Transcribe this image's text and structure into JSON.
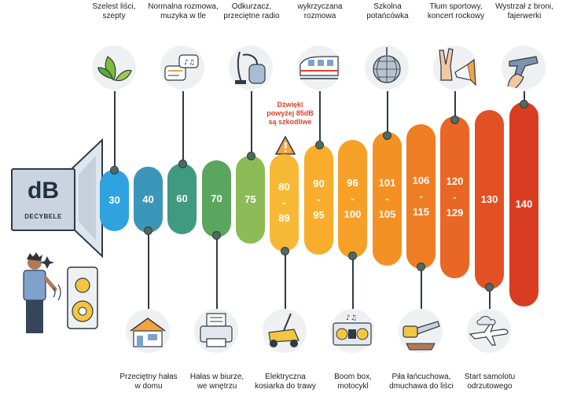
{
  "speaker": {
    "unit": "dB",
    "unit_label": "DECYBELE"
  },
  "warning": "Dźwięki\npowyżej 85dB\nsą szkodliwe",
  "top_labels": [
    "Szelest liści,\nszepty",
    "Normalna rozmowa,\nmuzyka w tle",
    "Odkurzacz,\nprzeciętne radio",
    "wykrzyczana\nrozmowa",
    "Szkolna\npotańcówka",
    "Tłum sportowy,\nkoncert rockowy",
    "Wystrzał z broni,\nfajerwerki"
  ],
  "bottom_labels": [
    "Przeciętny hałas\nw domu",
    "Hałas w biurze,\nwe wnętrzu",
    "Elektryczna\nkosiarka do trawy",
    "Boom box,\nmotocykl",
    "Piła łańcuchowa,\ndmuchawa do liści",
    "Start samolotu\nodrzutowego"
  ],
  "levels": [
    "30",
    "40",
    "60",
    "70",
    "75",
    "80\n-\n89",
    "90\n-\n95",
    "96\n-\n100",
    "101\n-\n105",
    "106\n-\n115",
    "120\n-\n129",
    "130",
    "140"
  ],
  "icons": {
    "top": [
      "leaves-icon",
      "speech-bubbles-icon",
      "vacuum-cleaner-icon",
      "train-icon",
      "disco-ball-icon",
      "victory-hand-megaphone-icon",
      "gun-icon"
    ],
    "bottom": [
      "house-icon",
      "office-printer-icon",
      "lawn-mower-icon",
      "boombox-icon",
      "chainsaw-icon",
      "airplane-icon"
    ]
  },
  "colors": {
    "pills": [
      "#2fa3df",
      "#3b96b9",
      "#3f9a80",
      "#5aa65e",
      "#8dbb58",
      "#f7b935",
      "#f8ad2d",
      "#f7a028",
      "#f49125",
      "#ef7d24",
      "#e86724",
      "#e25123",
      "#d83d22"
    ],
    "warning": "#d8432b"
  }
}
